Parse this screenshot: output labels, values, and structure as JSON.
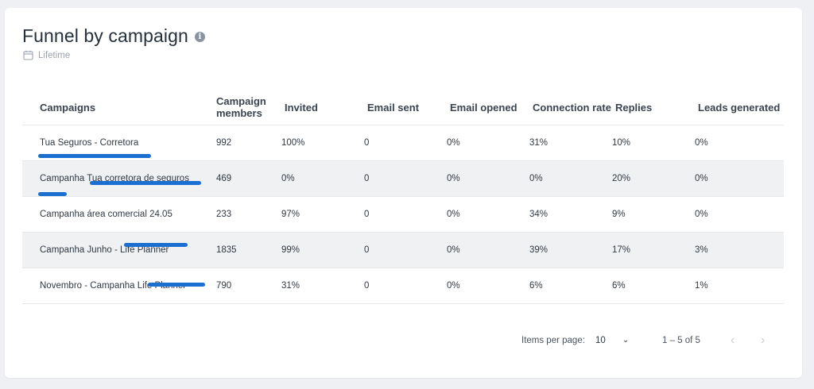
{
  "header": {
    "title": "Funnel by campaign",
    "info_icon": "info-icon",
    "subtitle": "Lifetime",
    "subtitle_icon": "calendar-icon"
  },
  "table": {
    "columns": [
      "Campaigns",
      "Campaign members",
      "Invited",
      "Email sent",
      "Email opened",
      "Connection rate",
      "Replies",
      "Leads generated"
    ],
    "rows": [
      {
        "name": "Tua Seguros - Corretora",
        "members": "992",
        "invited": "100%",
        "email_sent": "0",
        "email_opened": "0%",
        "connection_rate": "31%",
        "replies": "10%",
        "leads": "0%"
      },
      {
        "name": "Campanha Tua corretora de seguros",
        "members": "469",
        "invited": "0%",
        "email_sent": "0",
        "email_opened": "0%",
        "connection_rate": "0%",
        "replies": "20%",
        "leads": "0%"
      },
      {
        "name": "Campanha área comercial 24.05",
        "members": "233",
        "invited": "97%",
        "email_sent": "0",
        "email_opened": "0%",
        "connection_rate": "34%",
        "replies": "9%",
        "leads": "0%"
      },
      {
        "name": "Campanha Junho - Life Planner",
        "members": "1835",
        "invited": "99%",
        "email_sent": "0",
        "email_opened": "0%",
        "connection_rate": "39%",
        "replies": "17%",
        "leads": "3%"
      },
      {
        "name": "Novembro - Campanha Life Planner",
        "members": "790",
        "invited": "31%",
        "email_sent": "0",
        "email_opened": "0%",
        "connection_rate": "6%",
        "replies": "6%",
        "leads": "1%"
      }
    ]
  },
  "pagination": {
    "items_per_page_label": "Items per page:",
    "items_per_page_value": "10",
    "range": "1 – 5 of 5",
    "prev_icon": "chevron-left-icon",
    "next_icon": "chevron-right-icon",
    "dropdown_icon": "chevron-down-icon"
  },
  "colors": {
    "redaction": "#1a6fd1",
    "row_alt": "#f0f1f3",
    "background": "#eef0f3"
  }
}
